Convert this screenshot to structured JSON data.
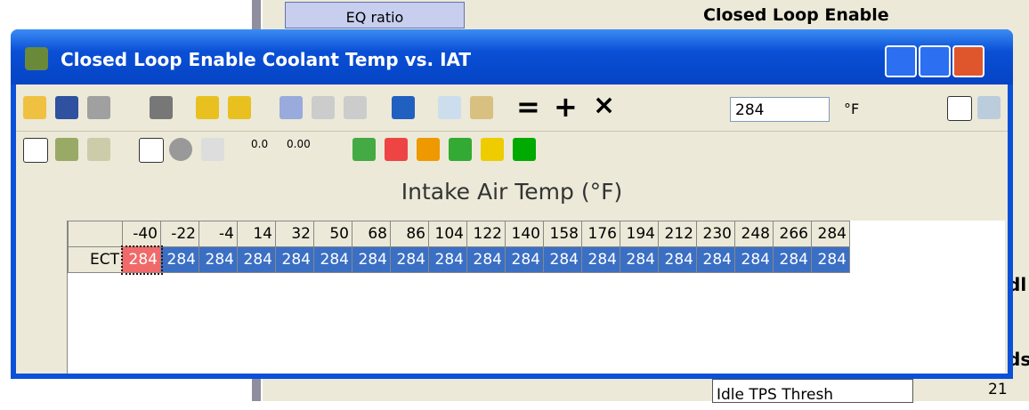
{
  "background": {
    "button": "EQ ratio",
    "heading": "Closed Loop Enable",
    "right_fragment_1": "dl",
    "right_fragment_2": "ds",
    "row_label": "Idle TPS Thresh",
    "row_value": "21"
  },
  "window": {
    "title": "Closed Loop Enable Coolant Temp vs. IAT"
  },
  "toolbar": {
    "input_value": "284",
    "unit": "°F",
    "decimal_1": "0.0",
    "decimal_2": "0.00"
  },
  "table": {
    "axis_label": "Intake Air Temp (°F)",
    "row_label": "ECT",
    "columns": [
      -40,
      -22,
      -4,
      14,
      32,
      50,
      68,
      86,
      104,
      122,
      140,
      158,
      176,
      194,
      212,
      230,
      248,
      266,
      284
    ],
    "values": [
      284,
      284,
      284,
      284,
      284,
      284,
      284,
      284,
      284,
      284,
      284,
      284,
      284,
      284,
      284,
      284,
      284,
      284,
      284
    ]
  }
}
